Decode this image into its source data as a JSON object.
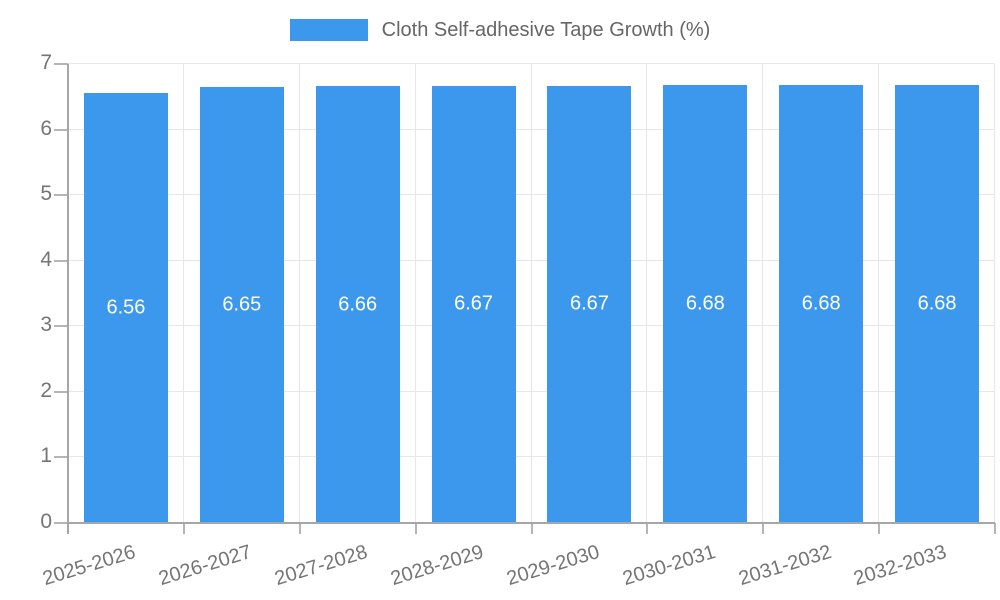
{
  "legend": {
    "label": "Cloth Self-adhesive Tape Growth (%)"
  },
  "chart_data": {
    "type": "bar",
    "title": "Cloth Self-adhesive Tape Growth (%)",
    "categories": [
      "2025-2026",
      "2026-2027",
      "2027-2028",
      "2028-2029",
      "2029-2030",
      "2030-2031",
      "2031-2032",
      "2032-2033"
    ],
    "values": [
      6.56,
      6.65,
      6.66,
      6.67,
      6.67,
      6.68,
      6.68,
      6.68
    ],
    "value_labels": [
      "6.56",
      "6.65",
      "6.66",
      "6.67",
      "6.67",
      "6.68",
      "6.68",
      "6.68"
    ],
    "xlabel": "",
    "ylabel": "",
    "ylim": [
      0,
      7
    ],
    "yticks": [
      0,
      1,
      2,
      3,
      4,
      5,
      6,
      7
    ],
    "grid": true,
    "legend_position": "top",
    "bar_color": "#3b98ec",
    "value_label_color": "#ffffff",
    "axis_color": "#a6a6a6",
    "grid_color": "#e7e7e7",
    "tick_label_color": "#757575",
    "legend_text_color": "#666666"
  }
}
